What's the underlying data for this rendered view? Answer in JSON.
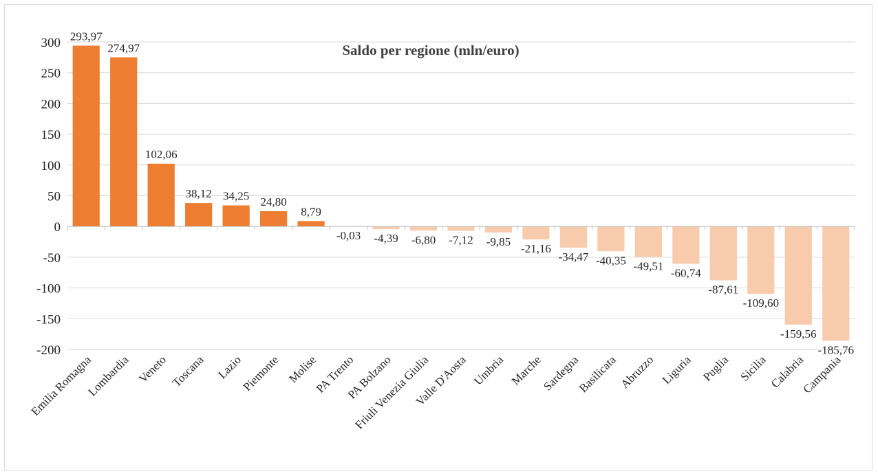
{
  "chart_data": {
    "type": "bar",
    "title": "Saldo per regione (mln/euro)",
    "xlabel": "",
    "ylabel": "",
    "ylim": [
      -200,
      300
    ],
    "yticks": [
      300,
      250,
      200,
      150,
      100,
      50,
      0,
      -50,
      -100,
      -150,
      -200
    ],
    "ytick_labels": [
      "300",
      "250",
      "200",
      "150",
      "100",
      "50",
      "0",
      "-50",
      "-100",
      "-150",
      "-200"
    ],
    "grid": true,
    "legend": "none",
    "colors": {
      "positive": "#ED7D31",
      "negative": "#F8CBAD"
    },
    "categories": [
      "Emilia Romagna",
      "Lombardia",
      "Veneto",
      "Toscana",
      "Lazio",
      "Piemonte",
      "Molise",
      "PA Trento",
      "PA Bolzano",
      "Friuli Venezia Giulia",
      "Valle D'Aosta",
      "Umbria",
      "Marche",
      "Sardegna",
      "Basilicata",
      "Abruzzo",
      "Liguria",
      "Puglia",
      "Sicilia",
      "Calabria",
      "Campania"
    ],
    "values": [
      293.97,
      274.97,
      102.06,
      38.12,
      34.25,
      24.8,
      8.79,
      -0.03,
      -4.39,
      -6.8,
      -7.12,
      -9.85,
      -21.16,
      -34.47,
      -40.35,
      -49.51,
      -60.74,
      -87.61,
      -109.6,
      -159.56,
      -185.76
    ],
    "data_labels": [
      "293,97",
      "274,97",
      "102,06",
      "38,12",
      "34,25",
      "24,80",
      "8,79",
      "-0,03",
      "-4,39",
      "-6,80",
      "-7,12",
      "-9,85",
      "-21,16",
      "-34,47",
      "-40,35",
      "-49,51",
      "-60,74",
      "-87,61",
      "-109,60",
      "-159,56",
      "-185,76"
    ]
  }
}
